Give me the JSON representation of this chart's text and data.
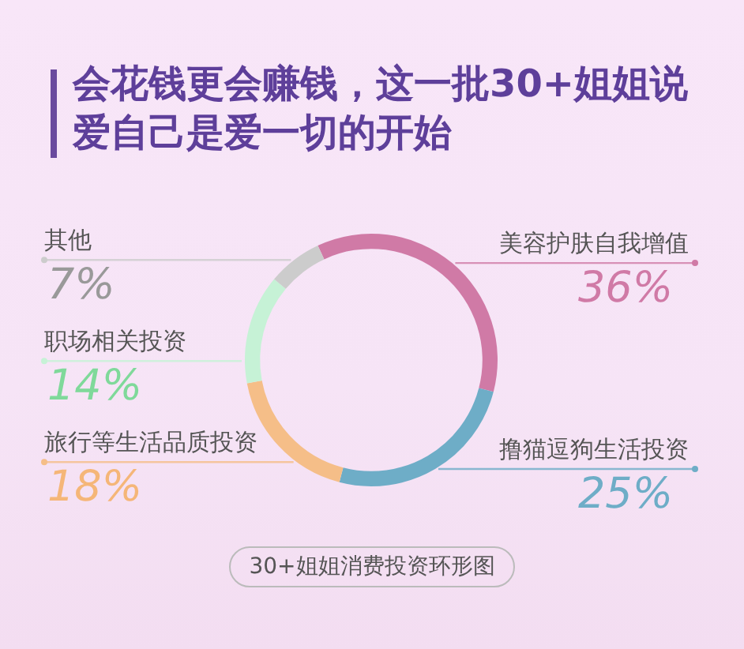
{
  "chart_data": {
    "type": "donut",
    "title": "会花钱更会赚钱，这一批30+姐姐说爱自己是爱一切的开始",
    "categories": [
      "美容护肤自我增值",
      "撸猫逗狗生活投资",
      "旅行等生活品质投资",
      "职场相关投资",
      "其他"
    ],
    "values": [
      36,
      25,
      18,
      14,
      7
    ],
    "value_labels": [
      "36%",
      "25%",
      "18%",
      "14%",
      "7%"
    ],
    "colors": [
      "#d07aa6",
      "#6eadc7",
      "#f5be88",
      "#c6f2d6",
      "#cccccc"
    ],
    "annotations": [
      "30+姐姐消费投资环形图"
    ],
    "legend": false
  }
}
